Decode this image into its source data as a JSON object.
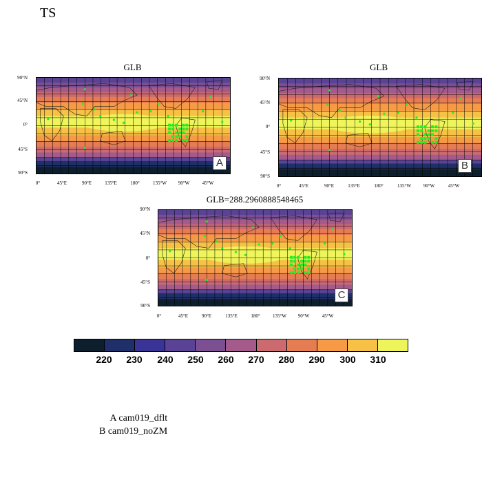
{
  "figure_title": "TS",
  "panels": [
    {
      "id": "A",
      "title": "GLB",
      "label": "A"
    },
    {
      "id": "B",
      "title": "GLB",
      "label": "B"
    },
    {
      "id": "C",
      "title": "GLB=288.2960888548465",
      "label": "C"
    }
  ],
  "lat_ticks": [
    "90°N",
    "45°N",
    "0°",
    "45°S",
    "90°S"
  ],
  "lon_ticks": [
    "0°",
    "45°E",
    "90°E",
    "135°E",
    "180°",
    "135°W",
    "90°W",
    "45°W"
  ],
  "colorbar": {
    "labels": [
      "220",
      "230",
      "240",
      "250",
      "260",
      "270",
      "280",
      "290",
      "300",
      "310"
    ],
    "colors": [
      "#0d1f2d",
      "#1e2f6a",
      "#3a3496",
      "#5a4394",
      "#7c4f92",
      "#a45b8c",
      "#cc6a70",
      "#e67c52",
      "#f69a45",
      "#f7c145",
      "#eef55a"
    ]
  },
  "legend": {
    "lines": [
      "A  cam019_dflt",
      "B  cam019_noZM"
    ]
  }
}
